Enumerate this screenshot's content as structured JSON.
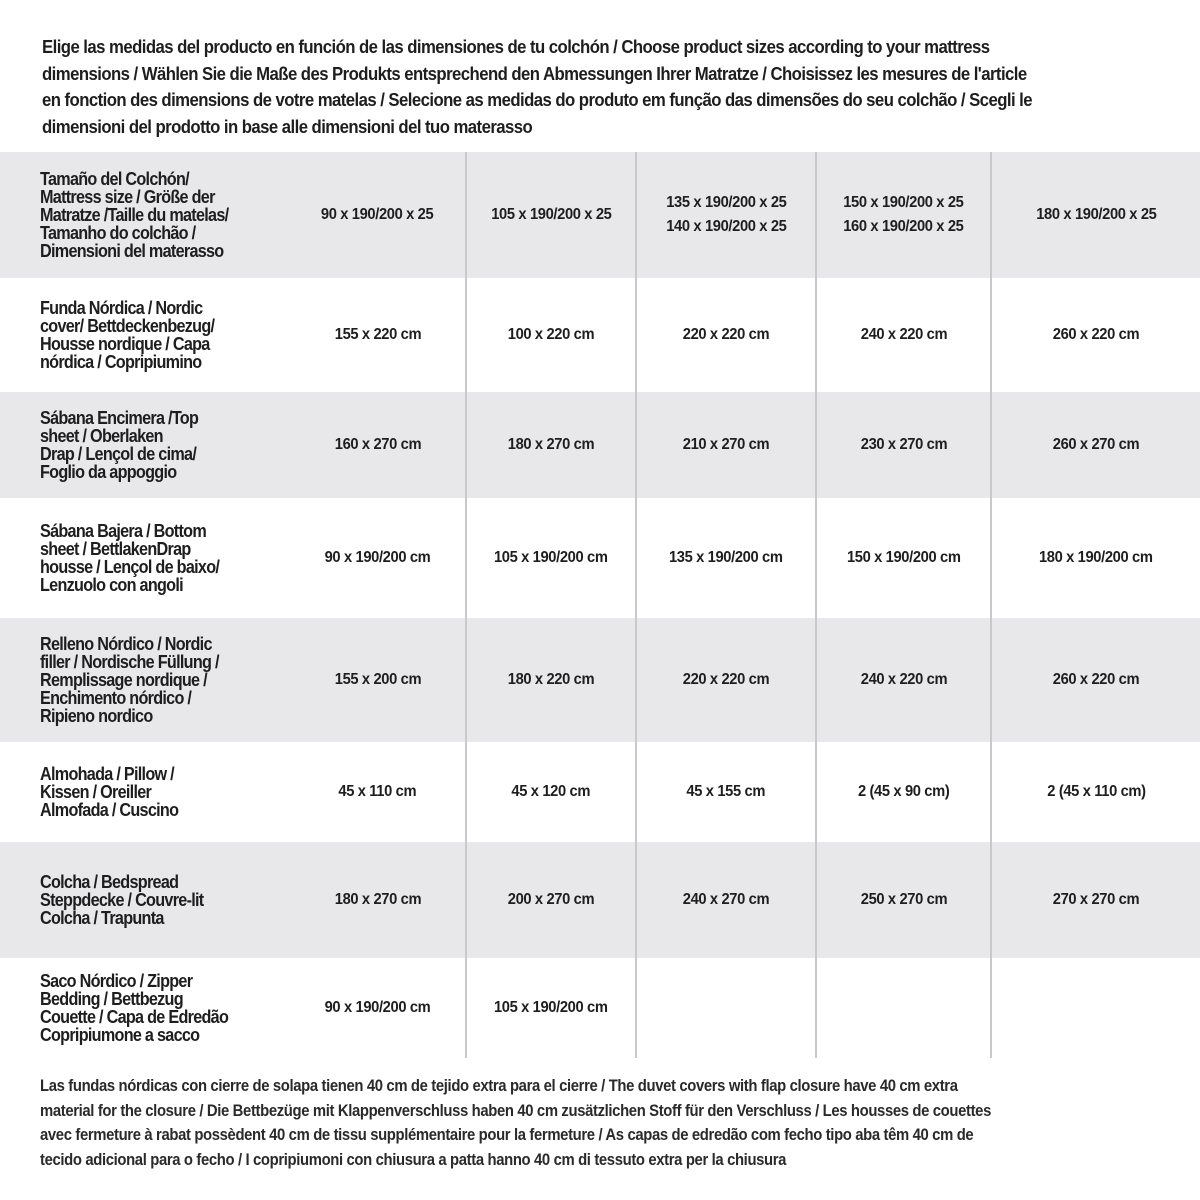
{
  "intro": "Elige las medidas del producto en función de las dimensiones de tu colchón / Choose product sizes according to your mattress\ndimensions / Wählen Sie die Maße des Produkts entsprechend den Abmessungen Ihrer Matratze / Choisissez les mesures de l'article\nen fonction des dimensions de votre matelas / Selecione as medidas do produto em função das dimensões do seu colchão / Scegli le\ndimensioni del prodotto in base alle dimensioni del tuo materasso",
  "table": {
    "rows": [
      {
        "label": "Tamaño del Colchón/\nMattress size / Größe der\nMatratze /Taille du matelas/\nTamanho do colchão /\nDimensioni del materasso",
        "values": [
          "90 x 190/200 x 25",
          "105 x 190/200 x 25",
          "135 x 190/200 x 25\n140 x 190/200 x 25",
          "150 x 190/200 x 25\n160 x 190/200 x 25",
          "180 x 190/200 x 25"
        ]
      },
      {
        "label": "Funda Nórdica /   Nordic\ncover/ Bettdeckenbezug/\nHousse nordique  / Capa\nnórdica / Copripiumino",
        "values": [
          "155 x 220 cm",
          "100 x 220 cm",
          "220 x 220 cm",
          "240 x 220 cm",
          "260 x 220 cm"
        ]
      },
      {
        "label": "Sábana Encimera /Top\nsheet / Oberlaken\nDrap / Lençol de cima/\nFoglio da appoggio",
        "values": [
          "160 x 270 cm",
          "180 x 270 cm",
          "210 x 270 cm",
          "230 x 270 cm",
          "260 x 270 cm"
        ]
      },
      {
        "label": "Sábana Bajera / Bottom\nsheet / BettlakenDrap\nhousse / Lençol de baixo/\nLenzuolo con angoli",
        "values": [
          "90 x 190/200 cm",
          "105 x 190/200 cm",
          "135 x 190/200 cm",
          "150 x 190/200 cm",
          "180 x 190/200 cm"
        ]
      },
      {
        "label": "Relleno Nórdico / Nordic\nfiller / Nordische Füllung /\nRemplissage nordique /\nEnchimento nórdico /\nRipieno nordico",
        "values": [
          "155 x 200 cm",
          "180 x 220 cm",
          "220 x 220 cm",
          "240 x 220 cm",
          "260 x 220 cm"
        ]
      },
      {
        "label": "Almohada  / Pillow /\nKissen / Oreiller\nAlmofada / Cuscino",
        "values": [
          "45 x 110 cm",
          "45 x 120 cm",
          "45 x 155 cm",
          "2 (45 x 90 cm)",
          "2 (45 x 110 cm)"
        ]
      },
      {
        "label": "Colcha / Bedspread\nSteppdecke / Couvre-lit\nColcha / Trapunta",
        "values": [
          "180 x 270 cm",
          "200 x 270 cm",
          "240 x 270 cm",
          "250 x 270 cm",
          "270 x 270 cm"
        ]
      },
      {
        "label": "Saco Nórdico / Zipper\nBedding / Bettbezug\nCouette  / Capa de Edredão\nCopripiumone a sacco",
        "values": [
          "90 x 190/200 cm",
          "105 x 190/200 cm",
          "",
          "",
          ""
        ]
      }
    ]
  },
  "footnote": "Las fundas nórdicas con cierre de solapa tienen 40 cm de tejido extra para el cierre   / The duvet covers with flap closure have 40 cm extra\nmaterial for the closure / Die Bettbezüge mit Klappenverschluss haben 40 cm zusätzlichen Stoff für den Verschluss / Les housses de couettes\navec fermeture à rabat possèdent 40 cm de tissu supplémentaire pour la fermeture / As capas de edredão com fecho tipo aba têm 40 cm de\ntecido adicional para o fecho / I copripiumoni con chiusura a patta hanno 40 cm di tessuto extra per la chiusura",
  "colors": {
    "row_stripe": "#e8e8ea",
    "text": "#1e1e1e",
    "divider": "#c9c9cc"
  }
}
